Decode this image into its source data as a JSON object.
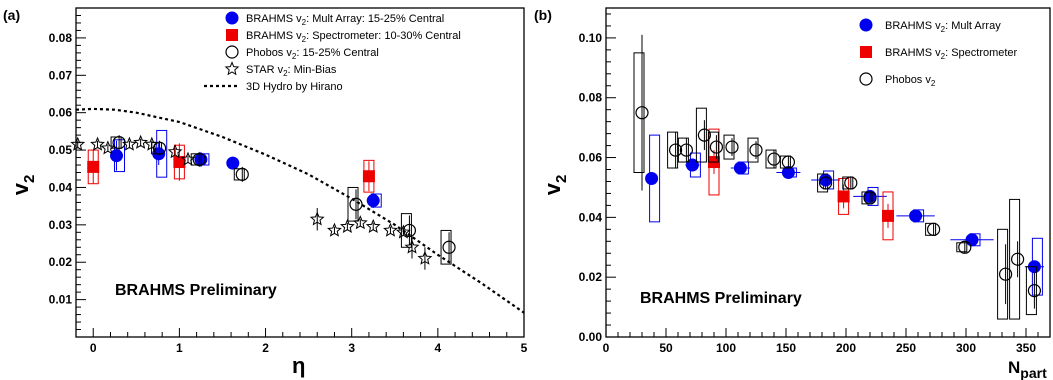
{
  "chart_data": [
    {
      "panel": "(a)",
      "type": "scatter",
      "xlabel": "η",
      "ylabel": "v",
      "ylabel_sub": "2",
      "xlim": [
        -0.2,
        5.0
      ],
      "ylim": [
        0,
        0.088
      ],
      "xticks": [
        0,
        1,
        2,
        3,
        4,
        5
      ],
      "yticks": [
        0.01,
        0.02,
        0.03,
        0.04,
        0.05,
        0.06,
        0.07,
        0.08
      ],
      "annotation": "BRAHMS Preliminary",
      "legend": [
        {
          "key": "mult",
          "text": "BRAHMS v",
          "sub": "2",
          "rest": ": Mult Array: 15-25% Central"
        },
        {
          "key": "spec",
          "text": "BRAHMS v",
          "sub": "2",
          "rest": ": Spectrometer: 10-30% Central"
        },
        {
          "key": "phobos",
          "text": "Phobos v",
          "sub": "2",
          "rest": ": 15-25% Central"
        },
        {
          "key": "star",
          "text": "STAR v",
          "sub": "2",
          "rest": ": Min-Bias"
        },
        {
          "key": "hydro",
          "text": "3D Hydro by Hirano",
          "sub": "",
          "rest": ""
        }
      ],
      "series": [
        {
          "name": "BRAHMS v2: Mult Array: 15-25% Central",
          "key": "mult",
          "color": "#0000ee",
          "points": [
            {
              "x": 0.27,
              "y": 0.0485,
              "err": 0.004,
              "sys": 0.0085
            },
            {
              "x": 0.76,
              "y": 0.049,
              "err": 0.003,
              "sys": 0.0125
            },
            {
              "x": 1.25,
              "y": 0.0475,
              "err": 0.002,
              "sys": 0.003
            },
            {
              "x": 1.62,
              "y": 0.0465,
              "err": 0.001,
              "sys": 0.0
            },
            {
              "x": 3.25,
              "y": 0.0365,
              "err": 0.002,
              "sys": 0.0035
            }
          ]
        },
        {
          "name": "BRAHMS v2: Spectrometer: 10-30% Central",
          "key": "spec",
          "color": "#ee0000",
          "points": [
            {
              "x": 0.0,
              "y": 0.0455,
              "err": 0.0045,
              "sys": 0.009
            },
            {
              "x": 1.0,
              "y": 0.0468,
              "err": 0.005,
              "sys": 0.009
            },
            {
              "x": 3.2,
              "y": 0.043,
              "err": 0.004,
              "sys": 0.0085
            }
          ]
        },
        {
          "name": "Phobos v2: 15-25% Central",
          "key": "phobos",
          "color": "#000000",
          "points": [
            {
              "x": 0.3,
              "y": 0.052,
              "err": 0.002,
              "sys": 0.003
            },
            {
              "x": 0.77,
              "y": 0.0505,
              "err": 0.002,
              "sys": 0.003
            },
            {
              "x": 1.23,
              "y": 0.0475,
              "err": 0.002,
              "sys": 0.003
            },
            {
              "x": 1.73,
              "y": 0.0435,
              "err": 0.002,
              "sys": 0.003
            },
            {
              "x": 3.05,
              "y": 0.0355,
              "err": 0.004,
              "sys": 0.009
            },
            {
              "x": 3.67,
              "y": 0.0285,
              "err": 0.004,
              "sys": 0.009
            },
            {
              "x": 4.13,
              "y": 0.024,
              "err": 0.004,
              "sys": 0.009
            }
          ]
        },
        {
          "name": "STAR v2: Min-Bias",
          "key": "star",
          "color": "#000000",
          "points": [
            {
              "x": -0.18,
              "y": 0.0515,
              "err": 0.001
            },
            {
              "x": 0.05,
              "y": 0.0515,
              "err": 0.001
            },
            {
              "x": 0.17,
              "y": 0.0505,
              "err": 0.001
            },
            {
              "x": 0.42,
              "y": 0.0515,
              "err": 0.001
            },
            {
              "x": 0.55,
              "y": 0.052,
              "err": 0.001
            },
            {
              "x": 0.68,
              "y": 0.0515,
              "err": 0.001
            },
            {
              "x": 0.95,
              "y": 0.0495,
              "err": 0.001
            },
            {
              "x": 1.1,
              "y": 0.0475,
              "err": 0.001
            },
            {
              "x": 2.6,
              "y": 0.0315,
              "err": 0.003
            },
            {
              "x": 2.8,
              "y": 0.0285,
              "err": 0.001
            },
            {
              "x": 2.95,
              "y": 0.0295,
              "err": 0.001
            },
            {
              "x": 3.1,
              "y": 0.0305,
              "err": 0.001
            },
            {
              "x": 3.25,
              "y": 0.0295,
              "err": 0.001
            },
            {
              "x": 3.45,
              "y": 0.0285,
              "err": 0.001
            },
            {
              "x": 3.6,
              "y": 0.028,
              "err": 0.001
            },
            {
              "x": 3.7,
              "y": 0.024,
              "err": 0.003
            },
            {
              "x": 3.85,
              "y": 0.021,
              "err": 0.003
            }
          ]
        },
        {
          "name": "3D Hydro by Hirano",
          "key": "hydro",
          "color": "#000000",
          "curve": [
            {
              "x": -0.2,
              "y": 0.0608
            },
            {
              "x": 0.0,
              "y": 0.061
            },
            {
              "x": 0.25,
              "y": 0.0608
            },
            {
              "x": 0.5,
              "y": 0.06
            },
            {
              "x": 1.0,
              "y": 0.0575
            },
            {
              "x": 1.5,
              "y": 0.0535
            },
            {
              "x": 2.0,
              "y": 0.0488
            },
            {
              "x": 2.5,
              "y": 0.0435
            },
            {
              "x": 3.0,
              "y": 0.037
            },
            {
              "x": 3.5,
              "y": 0.03
            },
            {
              "x": 4.0,
              "y": 0.022
            },
            {
              "x": 4.5,
              "y": 0.0145
            },
            {
              "x": 5.0,
              "y": 0.0065
            }
          ]
        }
      ]
    },
    {
      "panel": "(b)",
      "type": "scatter",
      "xlabel": "N",
      "xlabel_sub": "part",
      "ylabel": "v",
      "ylabel_sub": "2",
      "xlim": [
        0,
        370
      ],
      "ylim": [
        0,
        0.11
      ],
      "xticks": [
        0,
        50,
        100,
        150,
        200,
        250,
        300,
        350
      ],
      "yticks": [
        0,
        0.02,
        0.04,
        0.06,
        0.08,
        0.1
      ],
      "annotation": "BRAHMS Preliminary",
      "legend": [
        {
          "key": "mult",
          "text": "BRAHMS v",
          "sub": "2",
          "rest": ": Mult Array"
        },
        {
          "key": "spec",
          "text": "BRAHMS v",
          "sub": "2",
          "rest": ": Spectrometer"
        },
        {
          "key": "phobos",
          "text": "Phobos v",
          "sub": "2",
          "rest": ""
        }
      ],
      "series": [
        {
          "name": "BRAHMS v2: Mult Array",
          "key": "mult",
          "color": "#0000ee",
          "points": [
            {
              "x": 38,
              "y": 0.053,
              "err": 0.002,
              "xerr": 0,
              "sys": 0.029
            },
            {
              "x": 72,
              "y": 0.0575,
              "err": 0.002,
              "xerr": 6,
              "sys": 0.008
            },
            {
              "x": 112,
              "y": 0.0565,
              "err": 0.002,
              "xerr": 8,
              "sys": 0.004
            },
            {
              "x": 152,
              "y": 0.055,
              "err": 0.002,
              "xerr": 10,
              "sys": 0.003
            },
            {
              "x": 183,
              "y": 0.0525,
              "err": 0.002,
              "xerr": 12,
              "sys": 0.006
            },
            {
              "x": 220,
              "y": 0.047,
              "err": 0.002,
              "xerr": 14,
              "sys": 0.006
            },
            {
              "x": 258,
              "y": 0.0405,
              "err": 0.002,
              "xerr": 16,
              "sys": 0.004
            },
            {
              "x": 305,
              "y": 0.0325,
              "err": 0.002,
              "xerr": 18,
              "sys": 0.004
            },
            {
              "x": 357,
              "y": 0.0235,
              "err": 0.002,
              "xerr": 8,
              "sys": 0.019
            }
          ]
        },
        {
          "name": "BRAHMS v2: Spectrometer",
          "key": "spec",
          "color": "#ee0000",
          "points": [
            {
              "x": 90,
              "y": 0.0585,
              "err": 0.004,
              "sys": 0.022
            },
            {
              "x": 198,
              "y": 0.047,
              "err": 0.004,
              "sys": 0.012
            },
            {
              "x": 235,
              "y": 0.0405,
              "err": 0.004,
              "sys": 0.016
            }
          ]
        },
        {
          "name": "Phobos v2",
          "key": "phobos",
          "color": "#000000",
          "points": [
            {
              "x": 30,
              "y": 0.075,
              "err": 0.026,
              "sys": 0.04
            },
            {
              "x": 58,
              "y": 0.0625,
              "err": 0.006,
              "sys": 0.012
            },
            {
              "x": 67,
              "y": 0.0625,
              "err": 0.004,
              "sys": 0.008
            },
            {
              "x": 82,
              "y": 0.0675,
              "err": 0.005,
              "sys": 0.018
            },
            {
              "x": 92,
              "y": 0.0635,
              "err": 0.004,
              "sys": 0.01
            },
            {
              "x": 105,
              "y": 0.0635,
              "err": 0.003,
              "sys": 0.008
            },
            {
              "x": 125,
              "y": 0.0625,
              "err": 0.003,
              "sys": 0.008
            },
            {
              "x": 140,
              "y": 0.0595,
              "err": 0.003,
              "sys": 0.006
            },
            {
              "x": 152,
              "y": 0.0585,
              "err": 0.002,
              "sys": 0.004
            },
            {
              "x": 183,
              "y": 0.0515,
              "err": 0.002,
              "sys": 0.006
            },
            {
              "x": 204,
              "y": 0.0515,
              "err": 0.002,
              "sys": 0.004
            },
            {
              "x": 220,
              "y": 0.0465,
              "err": 0.002,
              "sys": 0.004
            },
            {
              "x": 273,
              "y": 0.036,
              "err": 0.002,
              "sys": 0.004
            },
            {
              "x": 299,
              "y": 0.03,
              "err": 0.002,
              "sys": 0.003
            },
            {
              "x": 333,
              "y": 0.021,
              "err": 0.01,
              "sys": 0.03
            },
            {
              "x": 343,
              "y": 0.026,
              "err": 0.006,
              "sys": 0.04
            },
            {
              "x": 357,
              "y": 0.0155,
              "err": 0.006,
              "sys": 0.016
            }
          ]
        }
      ]
    }
  ]
}
